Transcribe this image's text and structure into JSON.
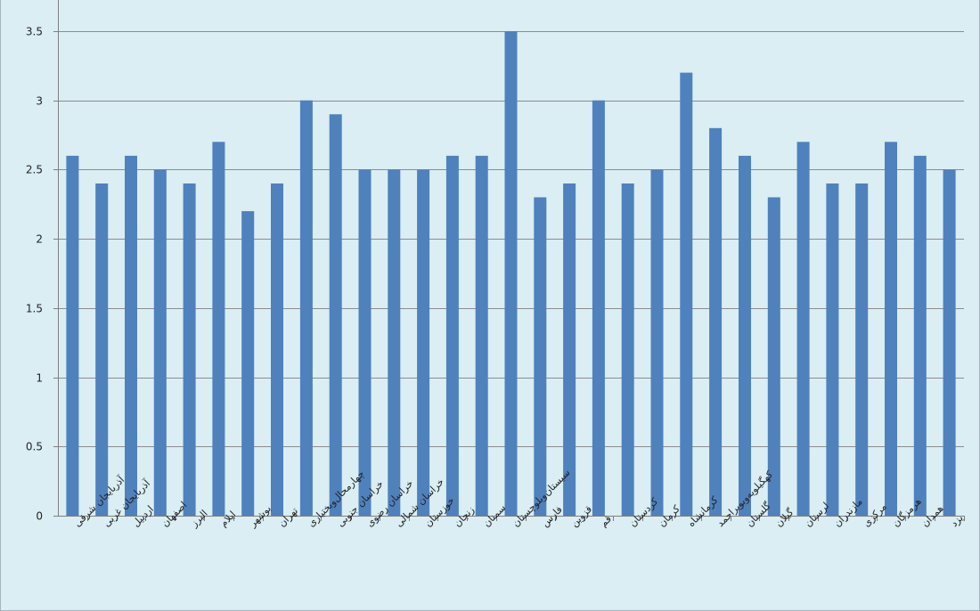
{
  "colors": {
    "bar": "#4f81bd",
    "plot_background": "#daeef3",
    "gridline": "#8c8c8c",
    "axis": "#7f7f7f"
  },
  "chart_data": {
    "type": "bar",
    "categories": [
      "آذربایجان شرقی",
      "آذربایجان غربی",
      "اردبیل",
      "اصفهان",
      "البرز",
      "ایلام",
      "بوشهر",
      "تهران",
      "چهارمحال‌وبختیاری",
      "خراسان جنوبی",
      "خراسان رضوی",
      "خراسان شمالی",
      "خوزستان",
      "زنجان",
      "سمنان",
      "سیستان‌وبلوچستان",
      "فارس",
      "قزوین",
      "قم",
      "کردستان",
      "کرمان",
      "کرمانشاه",
      "کهگیلویه‌وبویراحمد",
      "گلستان",
      "گیلان",
      "لرستان",
      "مازندران",
      "مرکزی",
      "هرمزگان",
      "همدان",
      "یزد"
    ],
    "values": [
      2.6,
      2.4,
      2.6,
      2.5,
      2.4,
      2.7,
      2.2,
      2.4,
      3.0,
      2.9,
      2.5,
      2.5,
      2.5,
      2.6,
      2.6,
      3.5,
      2.3,
      2.4,
      3.0,
      2.4,
      2.5,
      3.2,
      2.8,
      2.6,
      2.3,
      2.7,
      2.4,
      2.4,
      2.7,
      2.6,
      2.5
    ],
    "y_ticks": [
      "0",
      "0.5",
      "1",
      "1.5",
      "2",
      "2.5",
      "3",
      "3.5"
    ],
    "ylim": [
      0,
      3.5
    ],
    "grid": true,
    "legend": "none",
    "title": "",
    "xlabel": "",
    "ylabel": ""
  }
}
